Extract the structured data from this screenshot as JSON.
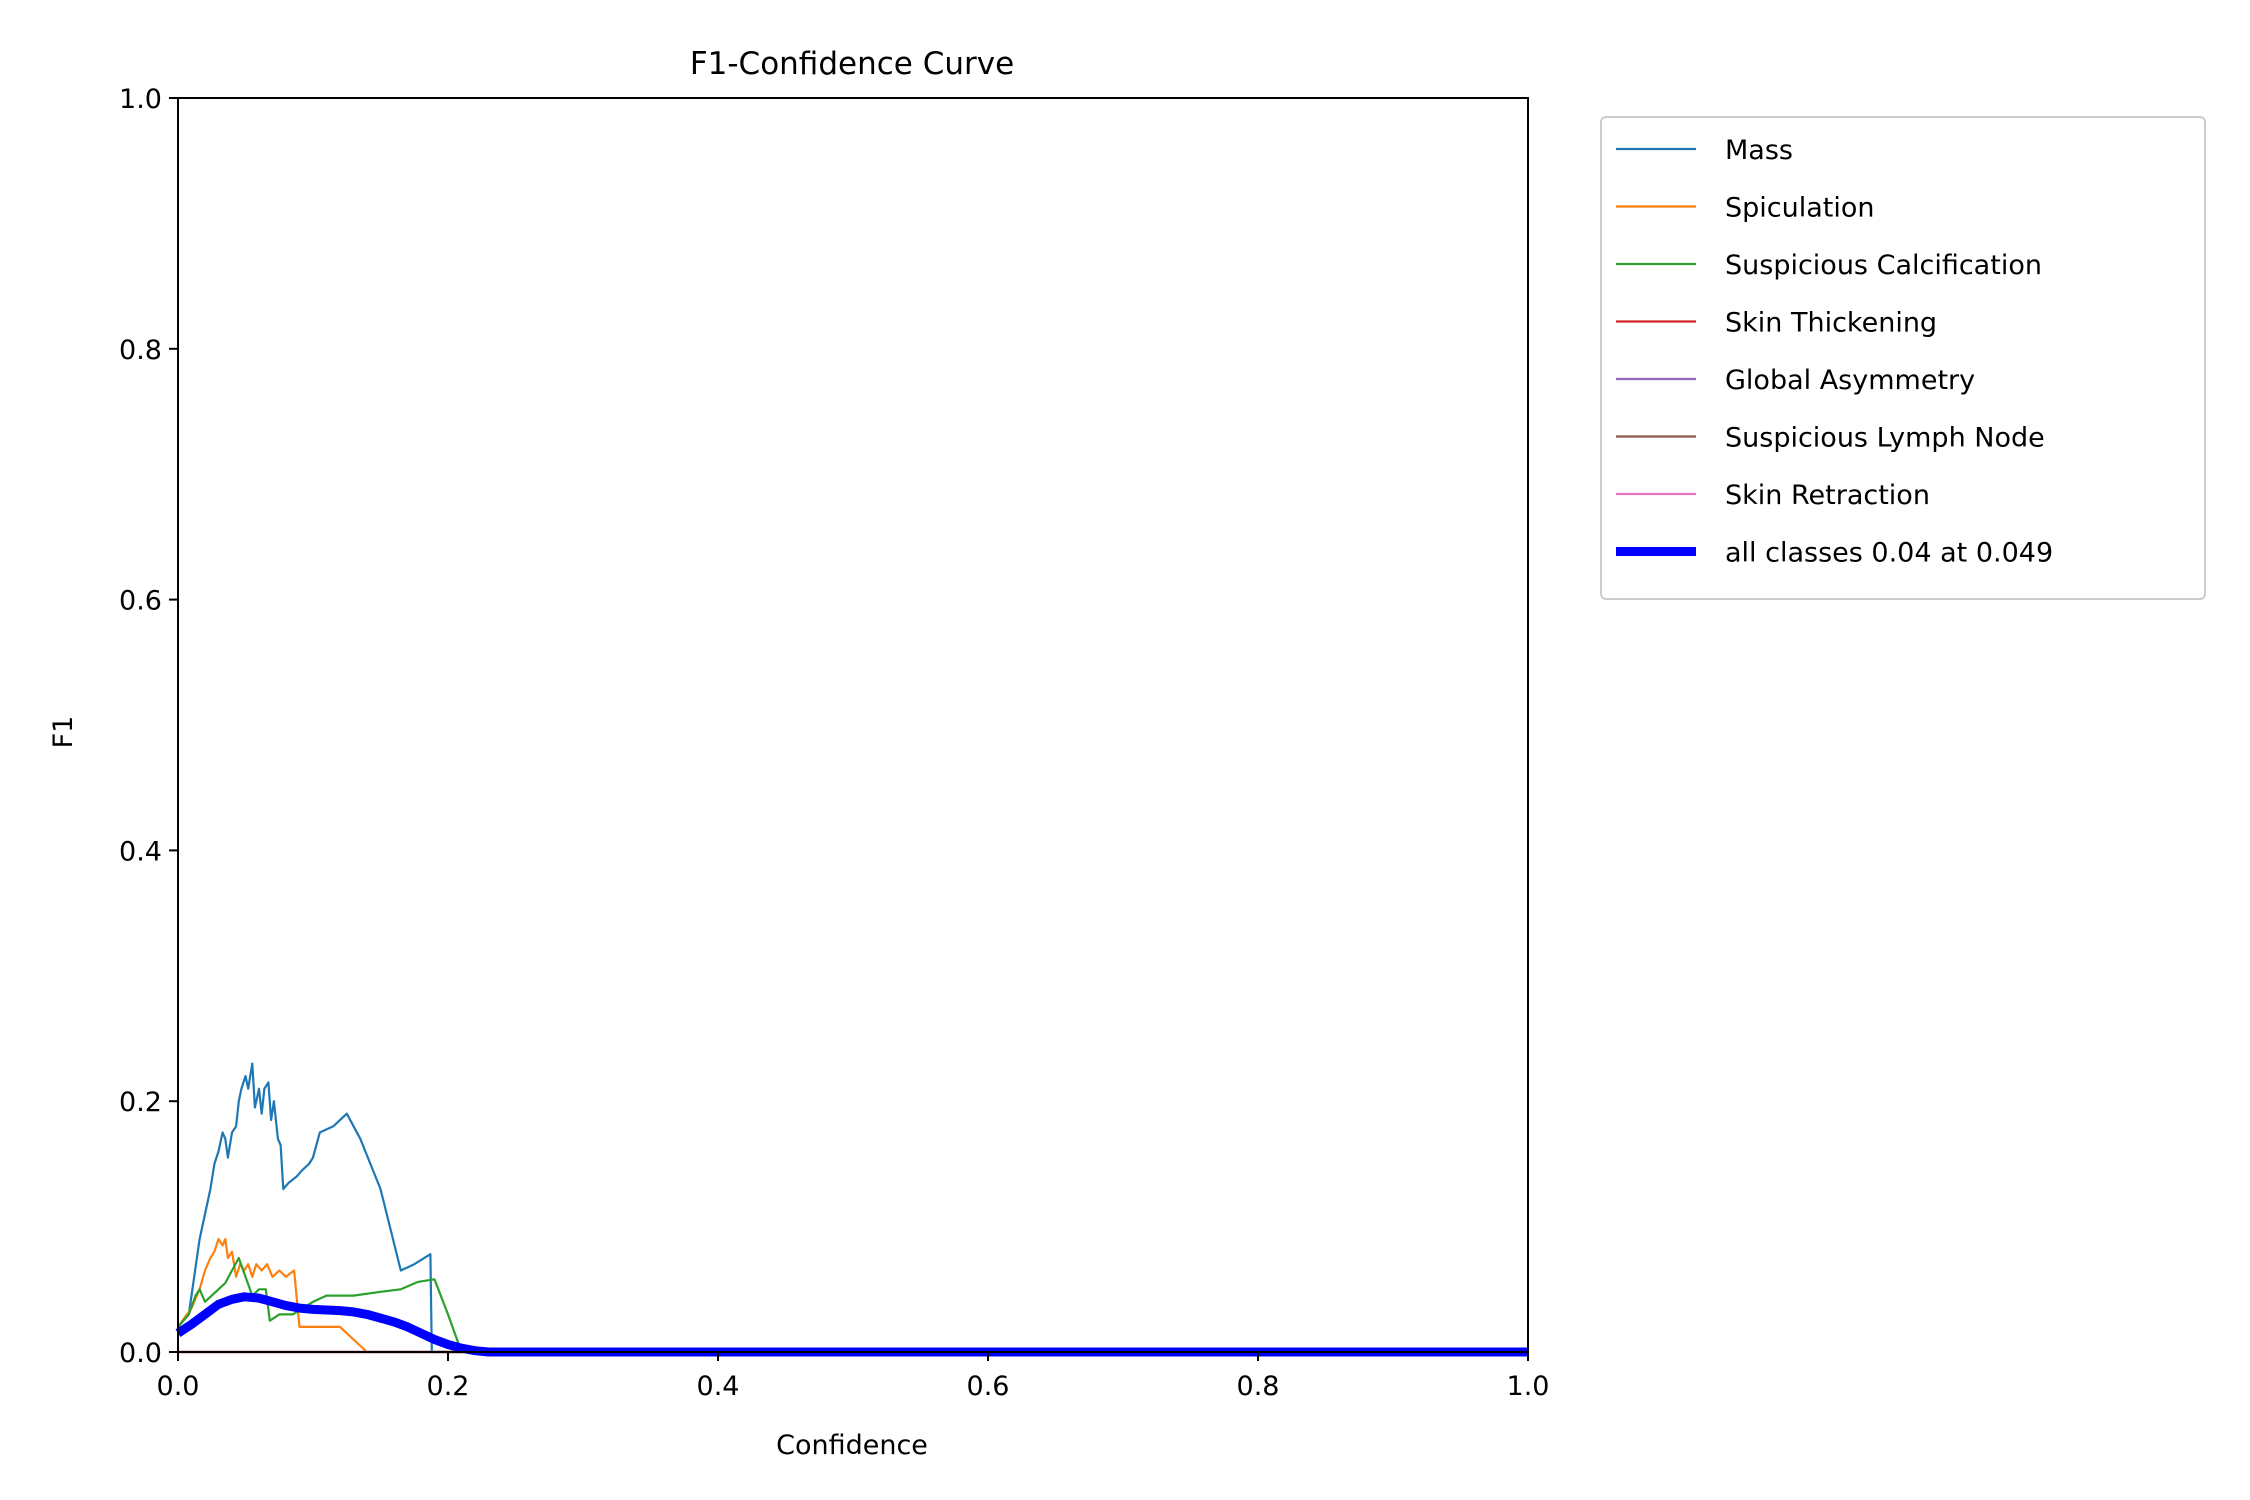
{
  "chart_data": {
    "type": "line",
    "title": "F1-Confidence Curve",
    "xlabel": "Confidence",
    "ylabel": "F1",
    "xlim": [
      0.0,
      1.0
    ],
    "ylim": [
      0.0,
      1.0
    ],
    "xticks": [
      "0.0",
      "0.2",
      "0.4",
      "0.6",
      "0.8",
      "1.0"
    ],
    "yticks": [
      "0.0",
      "0.2",
      "0.4",
      "0.6",
      "0.8",
      "1.0"
    ],
    "grid": false,
    "legend_position": "outside upper right",
    "series": [
      {
        "name": "Mass",
        "color": "#1f77b4",
        "points": [
          [
            0.0,
            0.02
          ],
          [
            0.008,
            0.03
          ],
          [
            0.012,
            0.06
          ],
          [
            0.016,
            0.09
          ],
          [
            0.02,
            0.11
          ],
          [
            0.024,
            0.13
          ],
          [
            0.027,
            0.15
          ],
          [
            0.03,
            0.16
          ],
          [
            0.033,
            0.175
          ],
          [
            0.035,
            0.17
          ],
          [
            0.037,
            0.155
          ],
          [
            0.04,
            0.175
          ],
          [
            0.043,
            0.18
          ],
          [
            0.045,
            0.2
          ],
          [
            0.047,
            0.21
          ],
          [
            0.05,
            0.22
          ],
          [
            0.052,
            0.21
          ],
          [
            0.055,
            0.23
          ],
          [
            0.057,
            0.195
          ],
          [
            0.06,
            0.21
          ],
          [
            0.062,
            0.19
          ],
          [
            0.064,
            0.21
          ],
          [
            0.067,
            0.215
          ],
          [
            0.069,
            0.185
          ],
          [
            0.071,
            0.2
          ],
          [
            0.074,
            0.17
          ],
          [
            0.076,
            0.165
          ],
          [
            0.078,
            0.13
          ],
          [
            0.082,
            0.135
          ],
          [
            0.088,
            0.14
          ],
          [
            0.092,
            0.145
          ],
          [
            0.097,
            0.15
          ],
          [
            0.1,
            0.155
          ],
          [
            0.105,
            0.175
          ],
          [
            0.115,
            0.18
          ],
          [
            0.125,
            0.19
          ],
          [
            0.135,
            0.17
          ],
          [
            0.15,
            0.13
          ],
          [
            0.165,
            0.065
          ],
          [
            0.175,
            0.07
          ],
          [
            0.187,
            0.078
          ],
          [
            0.188,
            0.0
          ],
          [
            1.0,
            0.0
          ]
        ]
      },
      {
        "name": "Spiculation",
        "color": "#ff7f0e",
        "points": [
          [
            0.0,
            0.02
          ],
          [
            0.01,
            0.035
          ],
          [
            0.016,
            0.05
          ],
          [
            0.02,
            0.065
          ],
          [
            0.024,
            0.075
          ],
          [
            0.027,
            0.08
          ],
          [
            0.03,
            0.09
          ],
          [
            0.033,
            0.085
          ],
          [
            0.035,
            0.09
          ],
          [
            0.037,
            0.075
          ],
          [
            0.04,
            0.08
          ],
          [
            0.043,
            0.06
          ],
          [
            0.046,
            0.07
          ],
          [
            0.049,
            0.065
          ],
          [
            0.052,
            0.07
          ],
          [
            0.055,
            0.06
          ],
          [
            0.058,
            0.07
          ],
          [
            0.062,
            0.065
          ],
          [
            0.066,
            0.07
          ],
          [
            0.07,
            0.06
          ],
          [
            0.075,
            0.065
          ],
          [
            0.08,
            0.06
          ],
          [
            0.086,
            0.065
          ],
          [
            0.09,
            0.02
          ],
          [
            0.1,
            0.02
          ],
          [
            0.12,
            0.02
          ],
          [
            0.13,
            0.01
          ],
          [
            0.14,
            0.0
          ],
          [
            1.0,
            0.0
          ]
        ]
      },
      {
        "name": "Suspicious Calcification",
        "color": "#2ca02c",
        "points": [
          [
            0.0,
            0.02
          ],
          [
            0.008,
            0.03
          ],
          [
            0.013,
            0.045
          ],
          [
            0.016,
            0.05
          ],
          [
            0.02,
            0.04
          ],
          [
            0.025,
            0.045
          ],
          [
            0.03,
            0.05
          ],
          [
            0.035,
            0.055
          ],
          [
            0.04,
            0.065
          ],
          [
            0.045,
            0.075
          ],
          [
            0.05,
            0.06
          ],
          [
            0.055,
            0.045
          ],
          [
            0.06,
            0.05
          ],
          [
            0.065,
            0.05
          ],
          [
            0.068,
            0.025
          ],
          [
            0.075,
            0.03
          ],
          [
            0.085,
            0.03
          ],
          [
            0.1,
            0.04
          ],
          [
            0.11,
            0.045
          ],
          [
            0.13,
            0.045
          ],
          [
            0.15,
            0.048
          ],
          [
            0.165,
            0.05
          ],
          [
            0.178,
            0.056
          ],
          [
            0.19,
            0.058
          ],
          [
            0.2,
            0.03
          ],
          [
            0.21,
            0.0
          ],
          [
            1.0,
            0.0
          ]
        ]
      },
      {
        "name": "Skin Thickening",
        "color": "#d62728",
        "points": [
          [
            0.0,
            0.0
          ],
          [
            1.0,
            0.0
          ]
        ]
      },
      {
        "name": "Global Asymmetry",
        "color": "#9467bd",
        "points": [
          [
            0.0,
            0.0
          ],
          [
            1.0,
            0.0
          ]
        ]
      },
      {
        "name": "Suspicious Lymph Node",
        "color": "#8c564b",
        "points": [
          [
            0.0,
            0.0
          ],
          [
            1.0,
            0.0
          ]
        ]
      },
      {
        "name": "Skin Retraction",
        "color": "#e377c2",
        "points": [
          [
            0.0,
            0.0
          ],
          [
            1.0,
            0.0
          ]
        ]
      },
      {
        "name": "all classes 0.04 at 0.049",
        "color": "#0000ff",
        "bold": true,
        "points": [
          [
            0.0,
            0.015
          ],
          [
            0.01,
            0.022
          ],
          [
            0.02,
            0.03
          ],
          [
            0.03,
            0.038
          ],
          [
            0.04,
            0.042
          ],
          [
            0.049,
            0.044
          ],
          [
            0.06,
            0.043
          ],
          [
            0.07,
            0.04
          ],
          [
            0.08,
            0.037
          ],
          [
            0.09,
            0.035
          ],
          [
            0.1,
            0.034
          ],
          [
            0.12,
            0.033
          ],
          [
            0.13,
            0.032
          ],
          [
            0.14,
            0.03
          ],
          [
            0.15,
            0.027
          ],
          [
            0.16,
            0.024
          ],
          [
            0.17,
            0.02
          ],
          [
            0.18,
            0.015
          ],
          [
            0.19,
            0.01
          ],
          [
            0.2,
            0.006
          ],
          [
            0.21,
            0.003
          ],
          [
            0.22,
            0.001
          ],
          [
            0.23,
            0.0
          ],
          [
            1.0,
            0.0
          ]
        ]
      }
    ]
  }
}
